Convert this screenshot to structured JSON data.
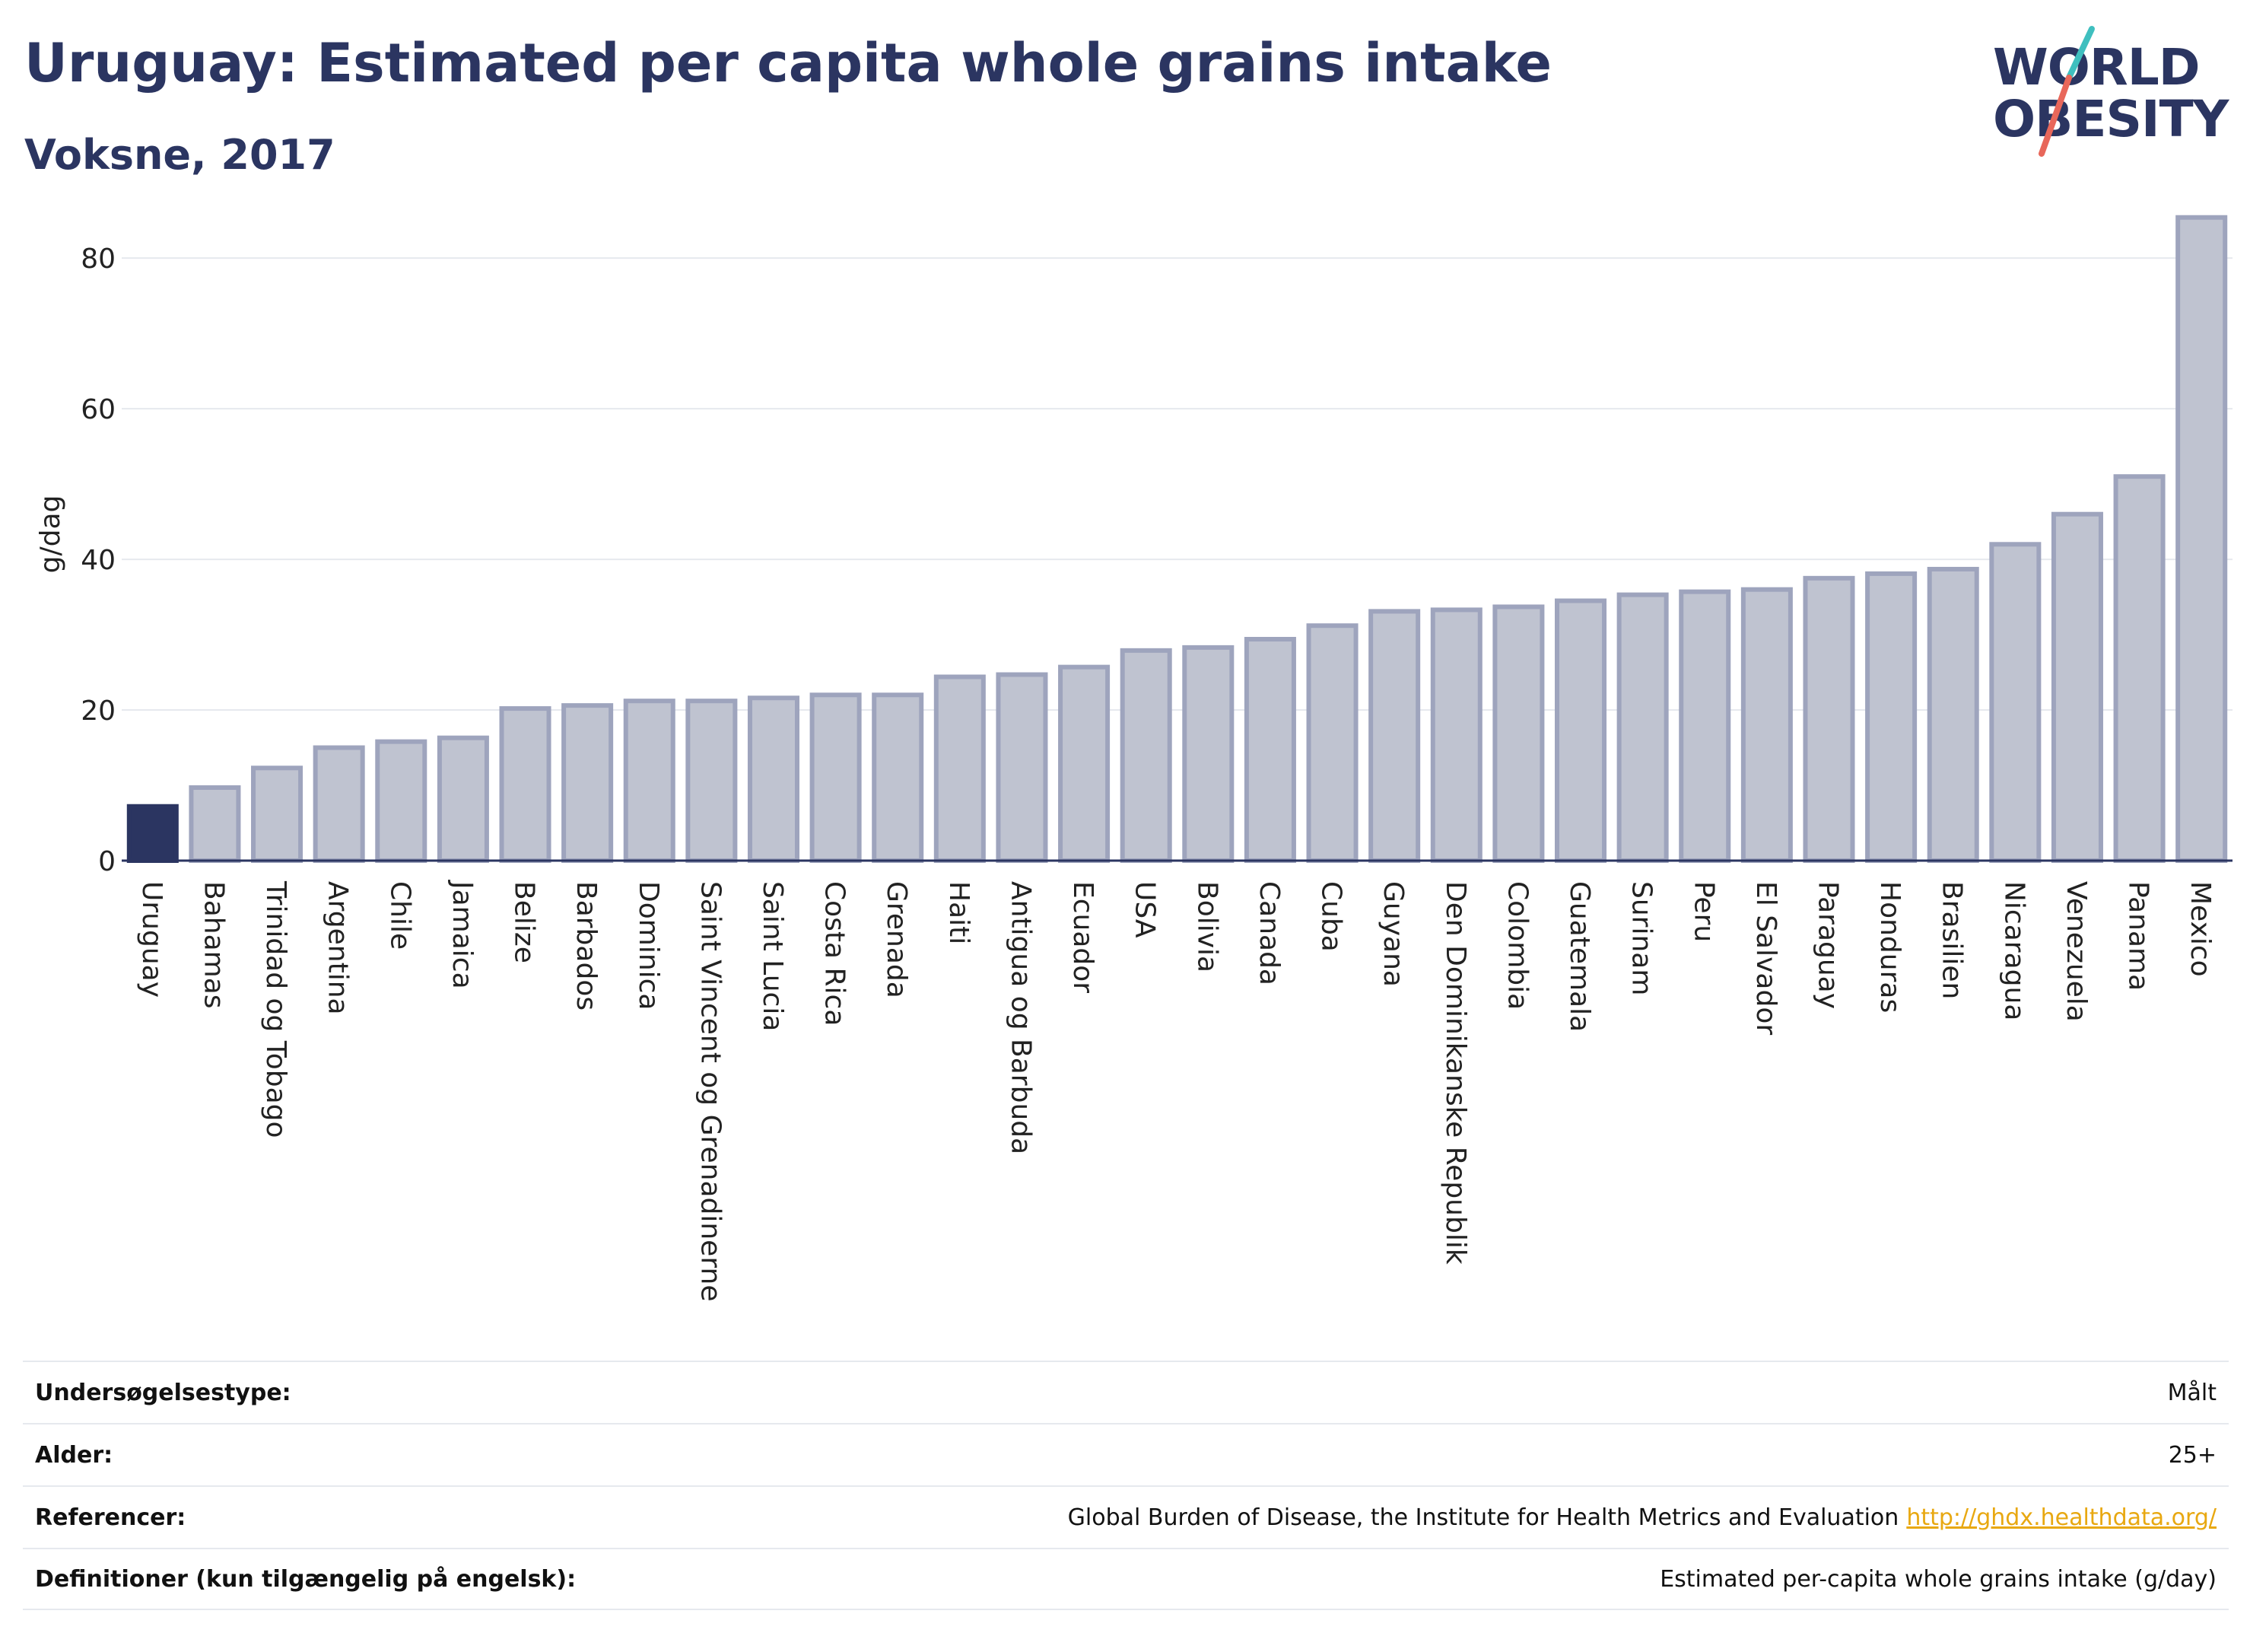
{
  "header": {
    "title": "Uruguay: Estimated per capita whole grains intake",
    "subtitle": "Voksne, 2017"
  },
  "logo": {
    "line1": "WORLD",
    "line2": "OBESITY",
    "colors": {
      "text": "#2b3561",
      "slash_top": "#3fbfbf",
      "slash_bottom": "#e8675a"
    }
  },
  "chart_data": {
    "type": "bar",
    "ylabel": "g/dag",
    "ylim": [
      0,
      88
    ],
    "yticks": [
      0,
      20,
      40,
      60,
      80
    ],
    "grid": true,
    "highlight_category": "Uruguay",
    "colors": {
      "highlight": "#2b3561",
      "bar": "#bfc3d0",
      "bar_edge": "#9ea4bd",
      "grid": "#e6e9ee"
    },
    "categories": [
      "Uruguay",
      "Bahamas",
      "Trinidad og Tobago",
      "Argentina",
      "Chile",
      "Jamaica",
      "Belize",
      "Barbados",
      "Dominica",
      "Saint Vincent og Grenadinerne",
      "Saint Lucia",
      "Costa Rica",
      "Grenada",
      "Haiti",
      "Antigua og Barbuda",
      "Ecuador",
      "USA",
      "Bolivia",
      "Canada",
      "Cuba",
      "Guyana",
      "Den Dominikanske Republik",
      "Colombia",
      "Guatemala",
      "Surinam",
      "Peru",
      "El Salvador",
      "Paraguay",
      "Honduras",
      "Brasilien",
      "Nicaragua",
      "Venezuela",
      "Panama",
      "Mexico"
    ],
    "values": [
      7.2,
      9.7,
      12.3,
      15.0,
      15.8,
      16.3,
      20.2,
      20.6,
      21.2,
      21.2,
      21.6,
      22.0,
      22.0,
      24.4,
      24.7,
      25.7,
      27.9,
      28.3,
      29.4,
      31.2,
      33.1,
      33.3,
      33.7,
      34.5,
      35.3,
      35.7,
      36.0,
      37.5,
      38.1,
      38.7,
      42.0,
      46.0,
      51.0,
      85.4
    ]
  },
  "info_table": {
    "rows": [
      {
        "key": "Undersøgelsestype:",
        "value": "Målt",
        "link": ""
      },
      {
        "key": "Alder:",
        "value": "25+",
        "link": ""
      },
      {
        "key": "Referencer:",
        "value": "Global Burden of Disease, the Institute for Health Metrics and Evaluation",
        "link": "http://ghdx.healthdata.org/"
      },
      {
        "key": "Definitioner (kun tilgængelig på engelsk):",
        "value": "Estimated per-capita whole grains intake (g/day)",
        "link": ""
      }
    ]
  }
}
